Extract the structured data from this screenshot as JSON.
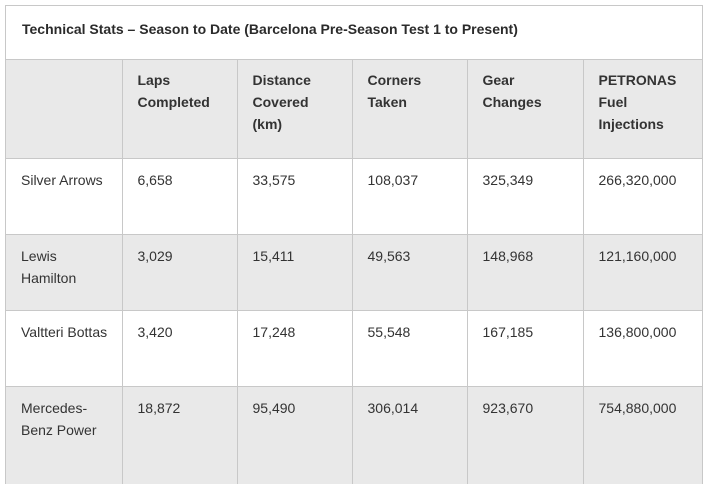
{
  "title": "Technical Stats – Season to Date (Barcelona Pre-Season Test 1 to Present)",
  "columns": [
    "",
    "Laps Completed",
    "Distance Covered (km)",
    "Corners Taken",
    "Gear Changes",
    "PETRONAS Fuel Injections"
  ],
  "rows": [
    [
      "Silver Arrows",
      "6,658",
      "33,575",
      "108,037",
      "325,349",
      "266,320,000"
    ],
    [
      "Lewis Hamilton",
      "3,029",
      "15,411",
      "49,563",
      "148,968",
      "121,160,000"
    ],
    [
      "Valtteri Bottas",
      "3,420",
      "17,248",
      "55,548",
      "167,185",
      "136,800,000"
    ],
    [
      "Mercedes-Benz Power",
      "18,872",
      "95,490",
      "306,014",
      "923,670",
      "754,880,000"
    ]
  ]
}
